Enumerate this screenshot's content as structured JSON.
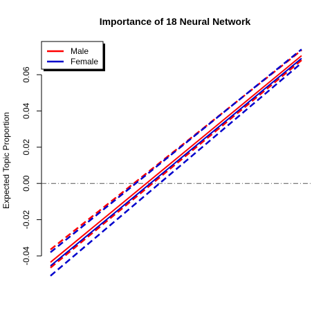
{
  "chart_data": {
    "type": "line",
    "title": "Importance of 18 Neural Network",
    "xlabel": "",
    "ylabel": "Expected Topic Proportion",
    "xlim": [
      0,
      1
    ],
    "ylim": [
      -0.04,
      0.06
    ],
    "yticks": [
      -0.04,
      -0.02,
      0.0,
      0.02,
      0.04,
      0.06
    ],
    "ytick_labels": [
      "-0.04",
      "-0.02",
      "0.00",
      "0.02",
      "0.04",
      "0.06"
    ],
    "grid": false,
    "reference_line": {
      "y": 0.0,
      "style": "dash-dot",
      "color": "#555555"
    },
    "legend": {
      "position": "top-left",
      "boxed": true
    },
    "series": [
      {
        "name": "Male",
        "color": "#ff0000",
        "x": [
          0,
          1
        ],
        "y": [
          -0.0435,
          0.0705
        ],
        "ci_lower": [
          -0.0465,
          0.068
        ],
        "ci_upper": [
          -0.0365,
          0.0735
        ]
      },
      {
        "name": "Female",
        "color": "#0000cc",
        "x": [
          0,
          1
        ],
        "y": [
          -0.0455,
          0.069
        ],
        "ci_lower": [
          -0.051,
          0.0665
        ],
        "ci_upper": [
          -0.038,
          0.074
        ]
      }
    ]
  }
}
